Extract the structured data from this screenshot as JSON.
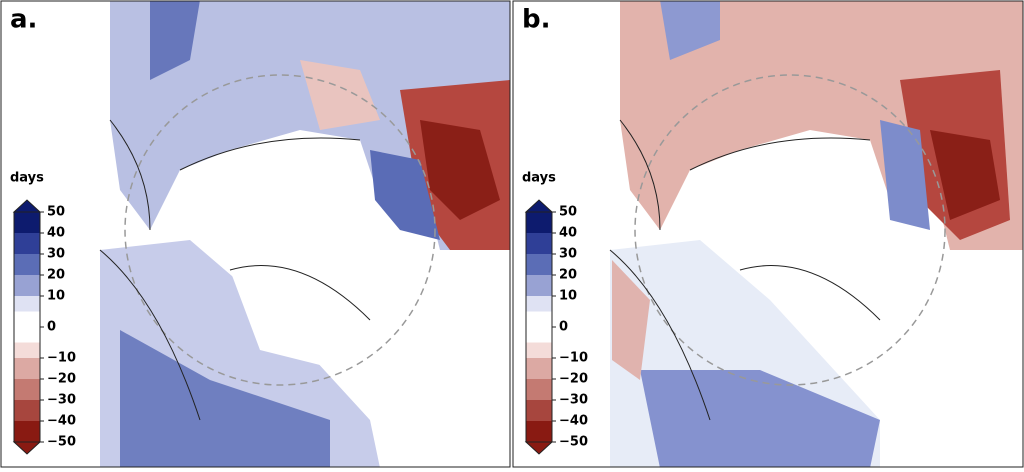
{
  "panels": [
    {
      "label": "a."
    },
    {
      "label": "b."
    }
  ],
  "colorbar": {
    "title": "days",
    "ticks": [
      50,
      40,
      30,
      20,
      10,
      0,
      {
        "value": -10,
        "label": "−10"
      },
      {
        "value": -20,
        "label": "−20"
      },
      {
        "value": -30,
        "label": "−30"
      },
      {
        "value": -40,
        "label": "−40"
      },
      {
        "value": -50,
        "label": "−50"
      }
    ],
    "colors": [
      "#0d1b6e",
      "#2f3f97",
      "#5b6db6",
      "#98a2d3",
      "#dfe2f3",
      "#f4dcd9",
      "#dca9a3",
      "#c47a72",
      "#a7463e",
      "#891a12"
    ]
  }
}
